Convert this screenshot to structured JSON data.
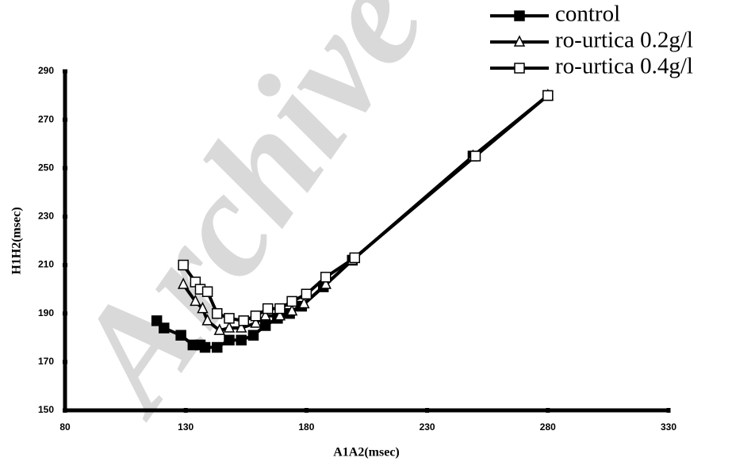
{
  "chart_data": {
    "type": "line",
    "watermark": "Archive",
    "x_label": "A1A2(msec)",
    "y_label": "H1H2(msec)",
    "xlim": [
      80,
      330
    ],
    "xticks": [
      80,
      130,
      180,
      230,
      280,
      330
    ],
    "ylim": [
      150,
      290
    ],
    "yticks": [
      150,
      170,
      190,
      210,
      230,
      250,
      270,
      290
    ],
    "legend": "top-right",
    "series": [
      {
        "name": "control",
        "color": "#000000",
        "marker": "square-filled",
        "x": [
          118,
          121,
          128,
          133,
          136,
          138,
          143,
          148,
          153,
          158,
          163,
          168,
          173,
          178,
          187,
          199,
          249,
          280
        ],
        "values": [
          187,
          184,
          181,
          177,
          177,
          176,
          176,
          179,
          179,
          181,
          185,
          188,
          190,
          193,
          201,
          212,
          255,
          280
        ]
      },
      {
        "name": "ro-urtica 0.2g/l",
        "color": "#000000",
        "marker": "triangle-open",
        "x": [
          129,
          134,
          137,
          139,
          144,
          148,
          153,
          159,
          163,
          169,
          174,
          179,
          188,
          199,
          249,
          280
        ],
        "values": [
          202,
          195,
          192,
          187,
          183,
          184,
          184,
          186,
          189,
          189,
          191,
          194,
          202,
          212,
          255,
          280
        ]
      },
      {
        "name": "ro-urtica 0.4g/l",
        "color": "#000000",
        "marker": "square-open",
        "x": [
          129,
          134,
          136,
          139,
          143,
          148,
          154,
          159,
          164,
          169,
          174,
          180,
          188,
          200,
          250,
          280
        ],
        "values": [
          210,
          203,
          200,
          199,
          190,
          188,
          187,
          189,
          192,
          192,
          195,
          198,
          205,
          213,
          255,
          280
        ]
      }
    ]
  }
}
